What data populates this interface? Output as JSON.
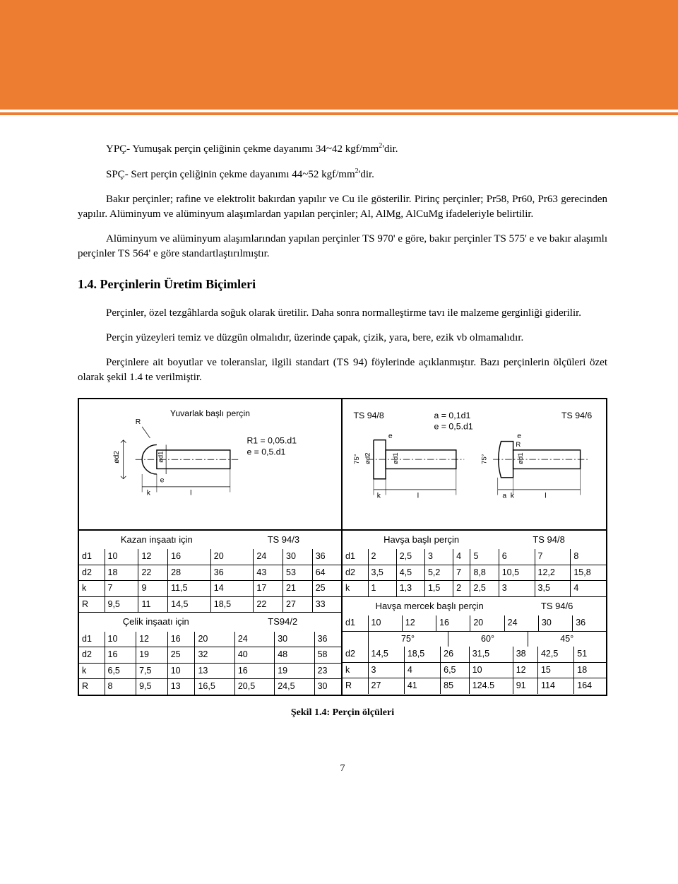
{
  "colors": {
    "accent": "#ed7d31",
    "text": "#000000",
    "background": "#ffffff"
  },
  "paragraphs": {
    "p1_before_sup": "YPÇ- Yumuşak perçin çeliğinin çekme dayanımı 34~42 kgf/mm",
    "p1_sup": "2",
    "p1_after_sup": "'dir.",
    "p2_before_sup": "SPÇ- Sert perçin çeliğinin çekme dayanımı 44~52 kgf/mm",
    "p2_sup": "2",
    "p2_after_sup": "'dir.",
    "p3": "Bakır perçinler; rafine ve elektrolit bakırdan yapılır ve Cu ile gösterilir. Pirinç perçinler; Pr58, Pr60, Pr63 gerecinden yapılır. Alüminyum ve alüminyum alaşımlardan yapılan perçinler; Al, AlMg, AlCuMg ifadeleriyle belirtilir.",
    "p4": "Alüminyum ve alüminyum alaşımlarından yapılan perçinler TS 970' e göre, bakır perçinler TS 575' e ve bakır alaşımlı perçinler TS 564' e göre standartlaştırılmıştır.",
    "heading": "1.4. Perçinlerin Üretim Biçimleri",
    "p5": "Perçinler, özel tezgâhlarda soğuk olarak üretilir. Daha sonra normalleştirme tavı ile malzeme gerginliği giderilir.",
    "p6": "Perçin yüzeyleri temiz ve düzgün olmalıdır, üzerinde çapak, çizik, yara, bere, ezik vb olmamalıdır.",
    "p7": "Perçinlere ait boyutlar ve toleranslar, ilgili standart (TS 94) föylerinde açıklanmıştır. Bazı perçinlerin ölçüleri özet olarak şekil 1.4 te verilmiştir."
  },
  "figure": {
    "caption": "Şekil 1.4: Perçin ölçüleri",
    "diagrams": {
      "left": {
        "title": "Yuvarlak başlı perçin",
        "formula1": "R1 = 0,05.d1",
        "formula2": "e = 0,5.d1",
        "labels": {
          "d2": "ød2",
          "d1": "ød1",
          "e": "e",
          "k": "k",
          "l": "l",
          "R": "R"
        }
      },
      "right": {
        "ts_left": "TS 94/8",
        "ts_right": "TS 94/6",
        "formula1": "a = 0,1d1",
        "formula2": "e = 0,5.d1",
        "angle": "75°",
        "labels": {
          "d2": "ød2",
          "d1": "ød1",
          "e": "e",
          "k": "k",
          "l": "l",
          "a": "a"
        }
      }
    },
    "left_tables": {
      "t1": {
        "title": "Kazan inşaatı için",
        "std": "TS 94/3",
        "rows": [
          [
            "d1",
            "10",
            "12",
            "16",
            "20",
            "24",
            "30",
            "36"
          ],
          [
            "d2",
            "18",
            "22",
            "28",
            "36",
            "43",
            "53",
            "64"
          ],
          [
            "k",
            "7",
            "9",
            "11,5",
            "14",
            "17",
            "21",
            "25"
          ],
          [
            "R",
            "9,5",
            "11",
            "14,5",
            "18,5",
            "22",
            "27",
            "33"
          ]
        ]
      },
      "t2": {
        "title": "Çelik inşaatı için",
        "std": "TS94/2",
        "rows": [
          [
            "d1",
            "10",
            "12",
            "16",
            "20",
            "24",
            "30",
            "36"
          ],
          [
            "d2",
            "16",
            "19",
            "25",
            "32",
            "40",
            "48",
            "58"
          ],
          [
            "k",
            "6,5",
            "7,5",
            "10",
            "13",
            "16",
            "19",
            "23"
          ],
          [
            "R",
            "8",
            "9,5",
            "13",
            "16,5",
            "20,5",
            "24,5",
            "30"
          ]
        ]
      }
    },
    "right_tables": {
      "t1": {
        "title": "Havşa başlı perçin",
        "std": "TS 94/8",
        "rows": [
          [
            "d1",
            "2",
            "2,5",
            "3",
            "4",
            "5",
            "6",
            "7",
            "8"
          ],
          [
            "d2",
            "3,5",
            "4,5",
            "5,2",
            "7",
            "8,8",
            "10,5",
            "12,2",
            "15,8"
          ],
          [
            "k",
            "1",
            "1,3",
            "1,5",
            "2",
            "2,5",
            "3",
            "3,5",
            "4"
          ]
        ]
      },
      "t2": {
        "title": "Havşa mercek başlı perçin",
        "std": "TS 94/6",
        "rows_head": [
          [
            "d1",
            "10",
            "12",
            "16",
            "20",
            "24",
            "30",
            "36"
          ]
        ],
        "angles": [
          "75°",
          "60°",
          "45°"
        ],
        "rows_body": [
          [
            "d2",
            "14,5",
            "18,5",
            "26",
            "31,5",
            "38",
            "42,5",
            "51"
          ],
          [
            "k",
            "3",
            "4",
            "6,5",
            "10",
            "12",
            "15",
            "18"
          ],
          [
            "R",
            "27",
            "41",
            "85",
            "124.5",
            "91",
            "114",
            "164"
          ]
        ]
      }
    }
  },
  "page_number": "7"
}
